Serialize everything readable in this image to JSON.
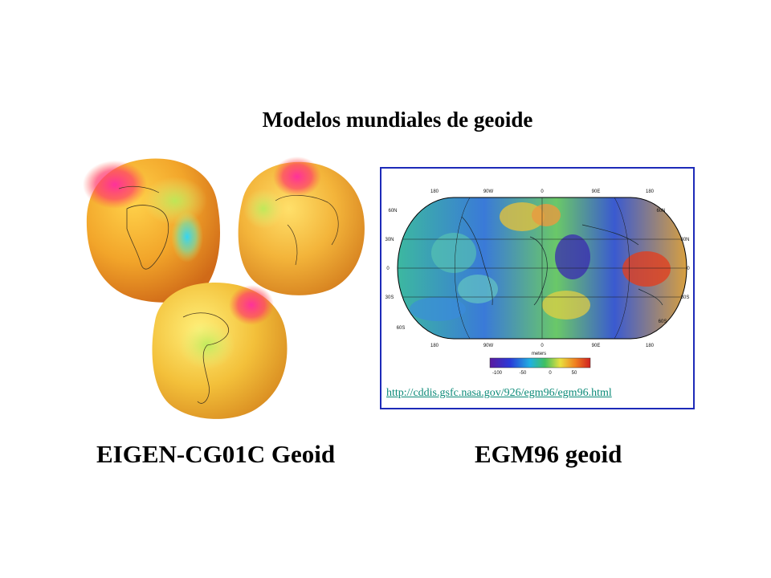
{
  "slide": {
    "title": "Modelos mundiales de geoide",
    "left_caption": "EIGEN-CG01C  Geoid",
    "right_caption": "EGM96 geoid"
  },
  "map": {
    "source_url": "http://cddis.gsfc.nasa.gov/926/egm96/egm96.html",
    "top_longitudes": [
      "180",
      "90W",
      "0",
      "90E",
      "180"
    ],
    "bottom_longitudes": [
      "180",
      "90W",
      "0",
      "90E",
      "180"
    ],
    "left_latitudes": [
      "60N",
      "30N",
      "0",
      "30S",
      "60S"
    ],
    "right_latitudes": [
      "60N",
      "30N",
      "0",
      "30S",
      "60S"
    ],
    "legend": {
      "title": "meters",
      "ticks": [
        "-100",
        "-50",
        "0",
        "50"
      ]
    }
  }
}
